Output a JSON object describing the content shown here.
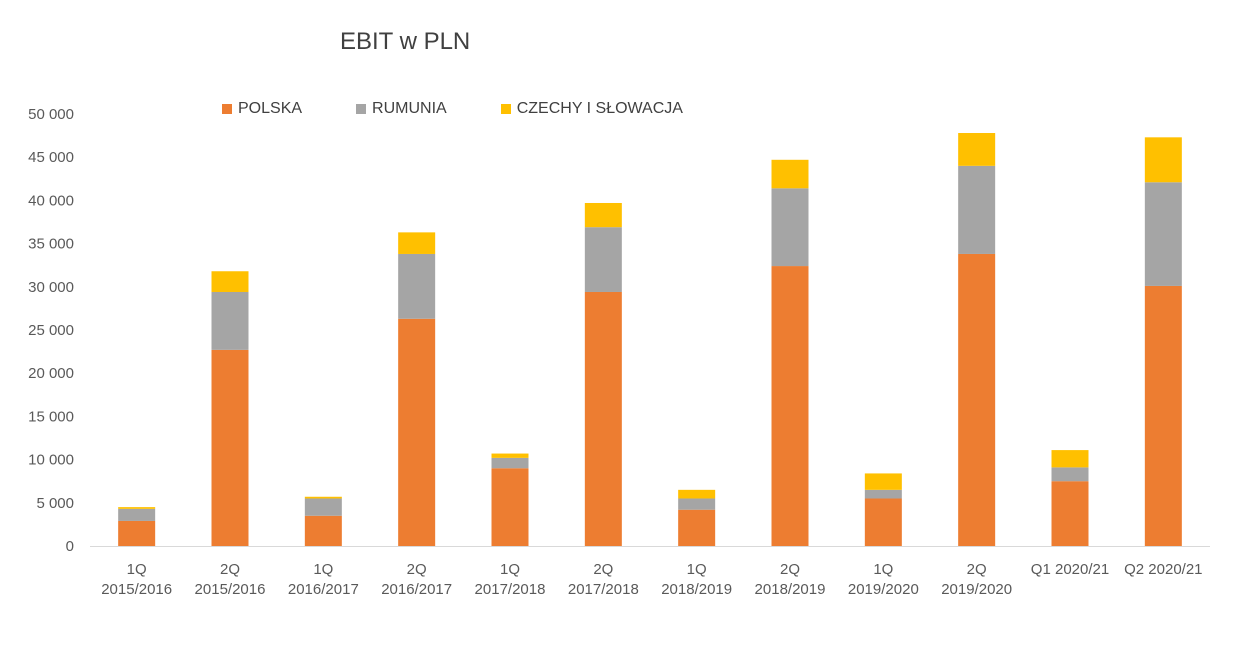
{
  "chart_data": {
    "type": "bar",
    "stacked": true,
    "title": "EBIT w PLN",
    "xlabel": "",
    "ylabel": "",
    "ylim": [
      0,
      50000
    ],
    "yticks": [
      0,
      5000,
      10000,
      15000,
      20000,
      25000,
      30000,
      35000,
      40000,
      45000,
      50000
    ],
    "ytick_labels": [
      "0",
      "5 000",
      "10 000",
      "15 000",
      "20 000",
      "25 000",
      "30 000",
      "35 000",
      "40 000",
      "45 000",
      "50 000"
    ],
    "grid": false,
    "legend_position": "top",
    "categories": [
      [
        "1Q",
        "2015/2016"
      ],
      [
        "2Q",
        "2015/2016"
      ],
      [
        "1Q",
        "2016/2017"
      ],
      [
        "2Q",
        "2016/2017"
      ],
      [
        "1Q",
        "2017/2018"
      ],
      [
        "2Q",
        "2017/2018"
      ],
      [
        "1Q",
        "2018/2019"
      ],
      [
        "2Q",
        "2018/2019"
      ],
      [
        "1Q",
        "2019/2020"
      ],
      [
        "2Q",
        "2019/2020"
      ],
      [
        "Q1 2020/21"
      ],
      [
        "Q2 2020/21"
      ]
    ],
    "series": [
      {
        "name": "POLSKA",
        "color": "#ED7D31",
        "values": [
          2900,
          22700,
          3500,
          26300,
          9000,
          29400,
          4200,
          32400,
          5500,
          33800,
          7500,
          30100
        ]
      },
      {
        "name": "RUMUNIA",
        "color": "#A5A5A5",
        "values": [
          1400,
          6700,
          2000,
          7500,
          1200,
          7500,
          1300,
          9000,
          1000,
          10200,
          1600,
          12000
        ]
      },
      {
        "name": "CZECHY I SŁOWACJA",
        "color": "#FFC000",
        "values": [
          200,
          2400,
          200,
          2500,
          500,
          2800,
          1000,
          3300,
          1900,
          3800,
          2000,
          5200
        ]
      }
    ]
  }
}
